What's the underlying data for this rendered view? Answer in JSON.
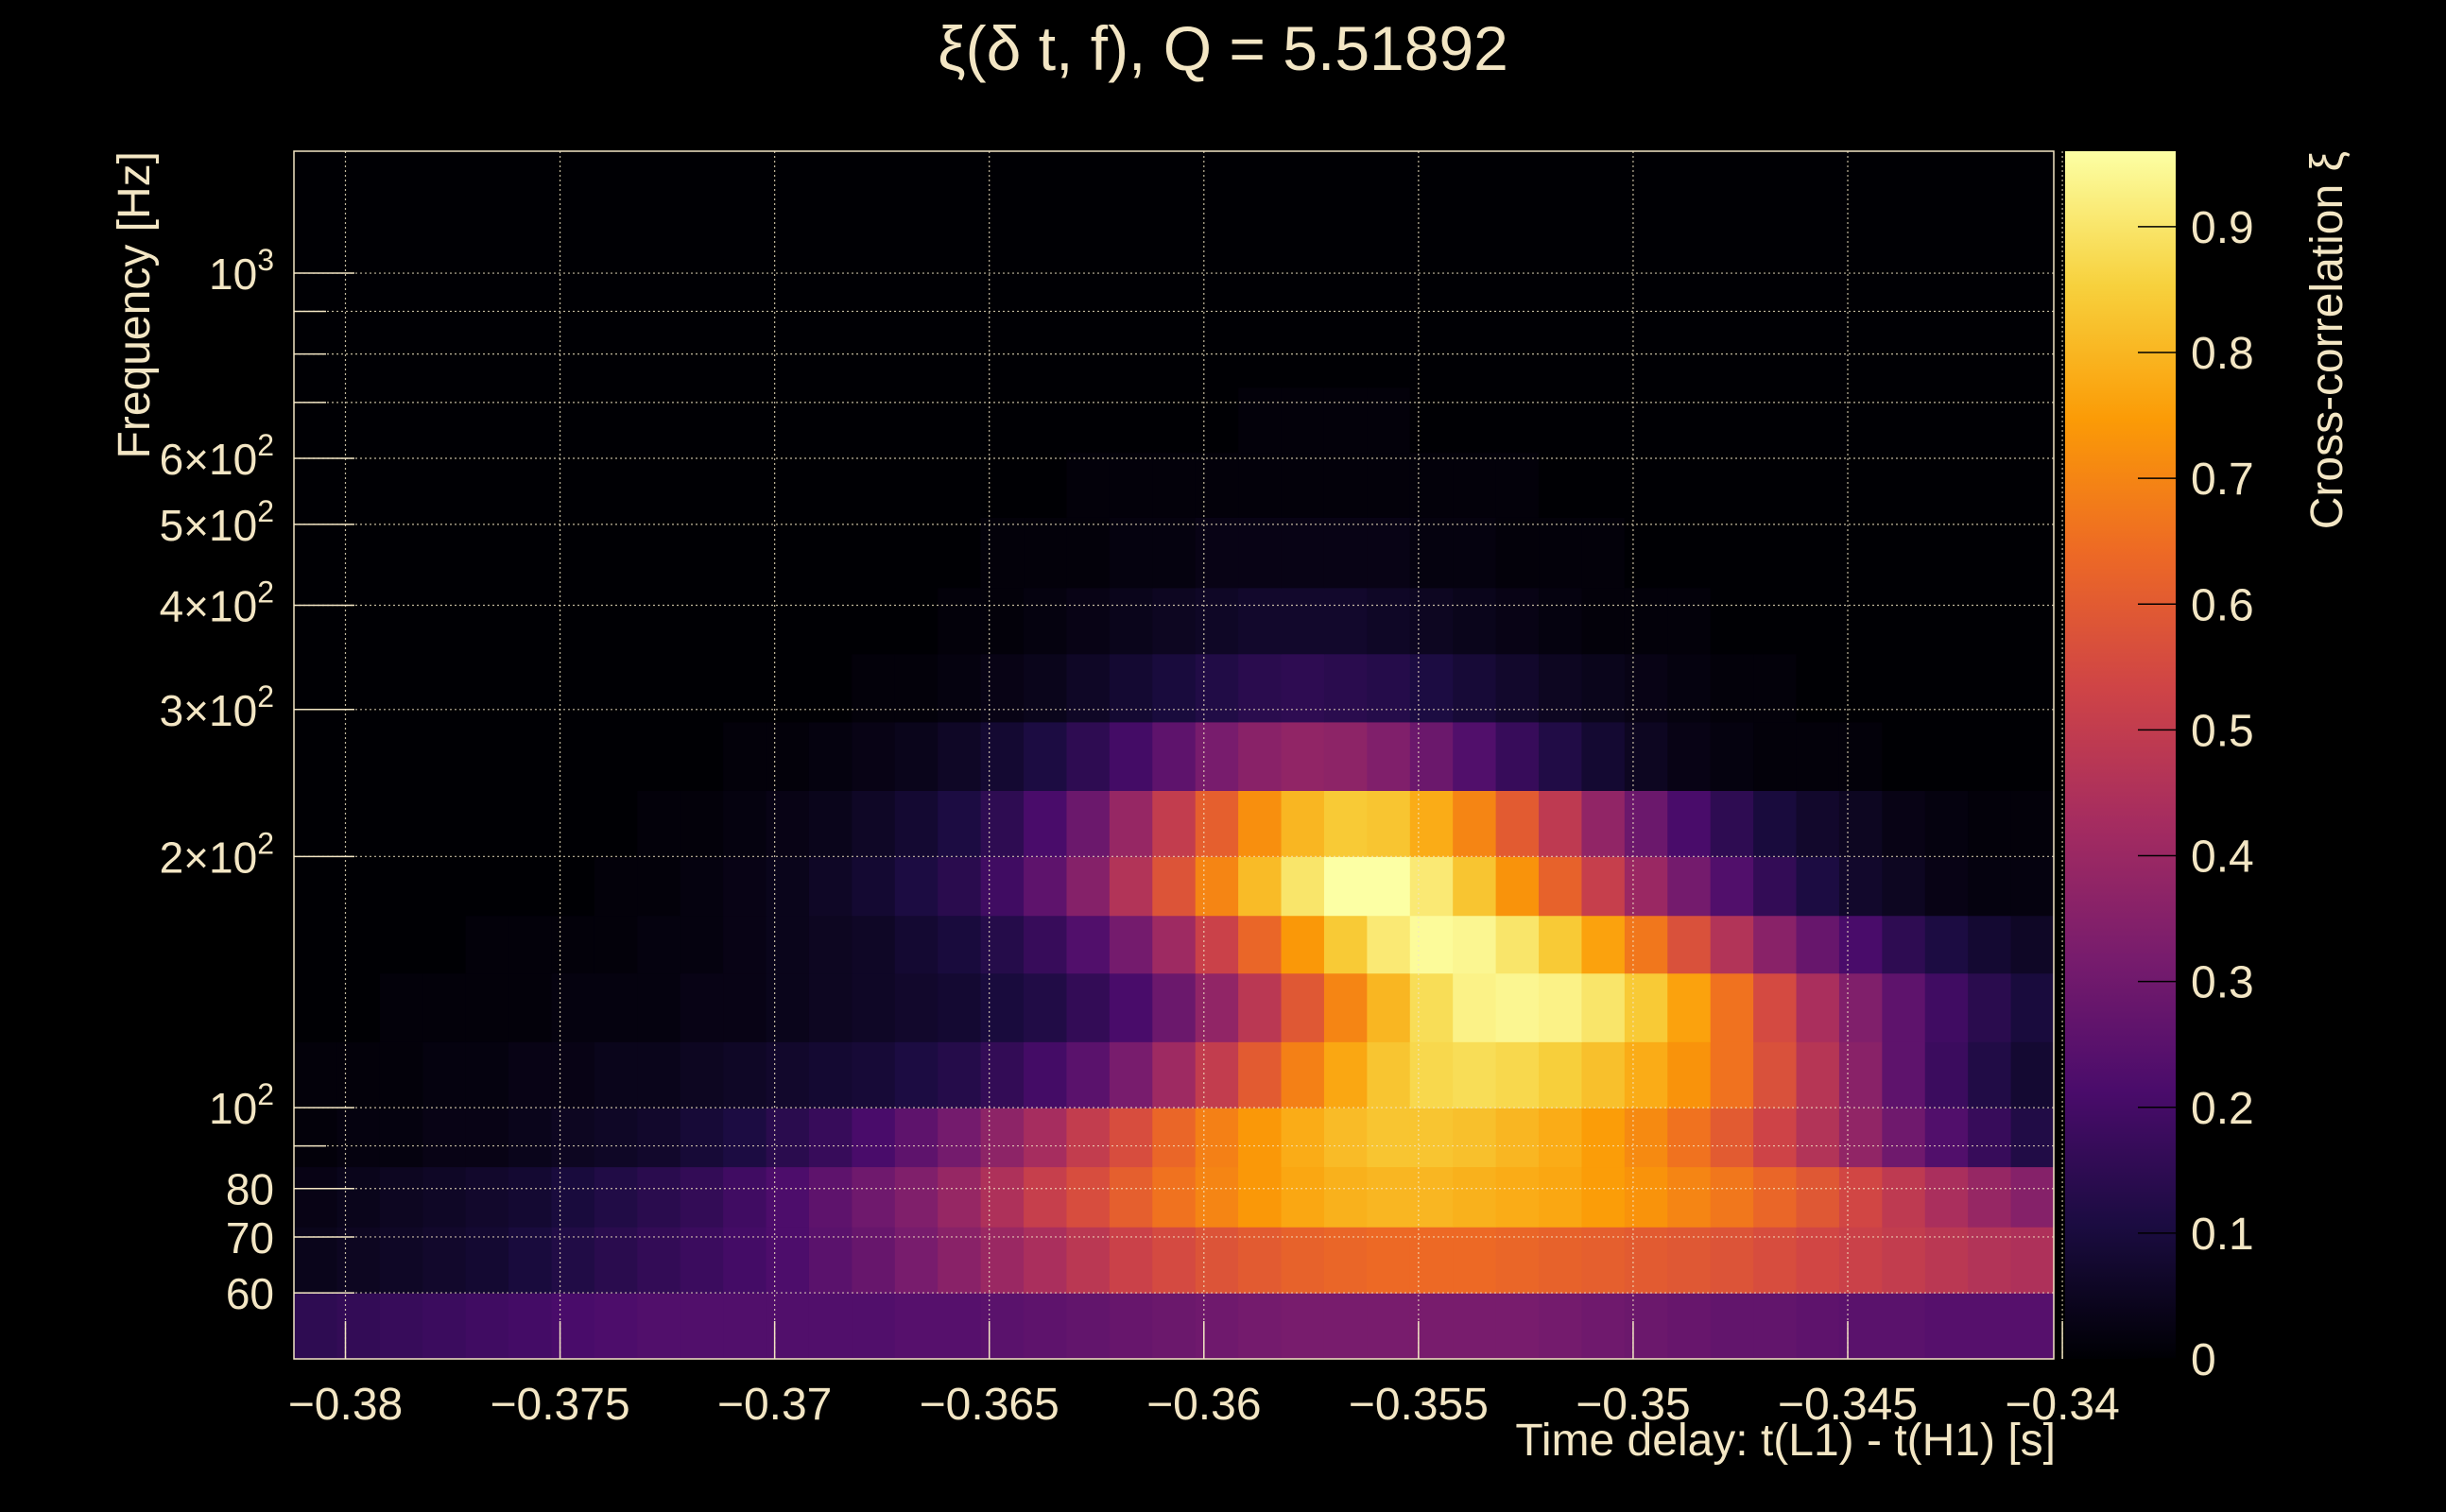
{
  "chart_data": {
    "type": "heatmap",
    "title": "ξ(δ t, f), Q = 5.51892",
    "xlabel": "Time delay: t(L1) - t(H1) [s]",
    "ylabel": "Frequency [Hz]",
    "colorbar_label": "Cross-correlation ξ",
    "x_range": [
      -0.3812,
      -0.3402
    ],
    "y_range": [
      50,
      1400
    ],
    "y_scale": "log",
    "grid": true,
    "x_ticks": [
      -0.38,
      -0.375,
      -0.37,
      -0.365,
      -0.36,
      -0.355,
      -0.35,
      -0.345,
      -0.34
    ],
    "x_tick_labels": [
      "−0.38",
      "−0.375",
      "−0.37",
      "−0.365",
      "−0.36",
      "−0.355",
      "−0.35",
      "−0.345",
      "−0.34"
    ],
    "y_ticks": [
      {
        "value": 60,
        "label": "60"
      },
      {
        "value": 70,
        "label": "70"
      },
      {
        "value": 80,
        "label": "80"
      },
      {
        "value": 100,
        "label": "10",
        "sup": "2"
      },
      {
        "value": 200,
        "label": "2×10",
        "sup": "2"
      },
      {
        "value": 300,
        "label": "3×10",
        "sup": "2"
      },
      {
        "value": 400,
        "label": "4×10",
        "sup": "2"
      },
      {
        "value": 500,
        "label": "5×10",
        "sup": "2"
      },
      {
        "value": 600,
        "label": "6×10",
        "sup": "2"
      },
      {
        "value": 1000,
        "label": "10",
        "sup": "3"
      }
    ],
    "y_minor_ticks": [
      90,
      700,
      800,
      900
    ],
    "colorbar_range": [
      0,
      0.96
    ],
    "colorbar_ticks": [
      {
        "value": 0,
        "label": "0"
      },
      {
        "value": 0.1,
        "label": "0.1"
      },
      {
        "value": 0.2,
        "label": "0.2"
      },
      {
        "value": 0.3,
        "label": "0.3"
      },
      {
        "value": 0.4,
        "label": "0.4"
      },
      {
        "value": 0.5,
        "label": "0.5"
      },
      {
        "value": 0.6,
        "label": "0.6"
      },
      {
        "value": 0.7,
        "label": "0.7"
      },
      {
        "value": 0.8,
        "label": "0.8"
      },
      {
        "value": 0.9,
        "label": "0.9"
      }
    ],
    "colormap": [
      "#000004",
      "#1b0c41",
      "#4a0c6b",
      "#781c6d",
      "#a52c60",
      "#cf4446",
      "#ed6925",
      "#fb9b06",
      "#f7d13d",
      "#fcffa4"
    ],
    "x_bin_edges": [
      -0.3812,
      -0.3802,
      -0.3792,
      -0.3782,
      -0.3772,
      -0.3762,
      -0.3752,
      -0.3742,
      -0.3732,
      -0.3722,
      -0.3712,
      -0.3702,
      -0.3692,
      -0.3682,
      -0.3672,
      -0.3662,
      -0.3652,
      -0.3642,
      -0.3632,
      -0.3622,
      -0.3612,
      -0.3602,
      -0.3592,
      -0.3582,
      -0.3572,
      -0.3562,
      -0.3552,
      -0.3542,
      -0.3532,
      -0.3522,
      -0.3512,
      -0.3502,
      -0.3492,
      -0.3482,
      -0.3472,
      -0.3462,
      -0.3452,
      -0.3442,
      -0.3432,
      -0.3422,
      -0.3412,
      -0.3402
    ],
    "y_bin_edges": [
      50,
      60,
      72,
      85,
      100,
      120,
      145,
      170,
      200,
      240,
      290,
      350,
      420,
      510,
      610,
      730,
      870,
      1040,
      1240,
      1400
    ],
    "z": [
      [
        0.15,
        0.16,
        0.17,
        0.18,
        0.19,
        0.2,
        0.21,
        0.22,
        0.23,
        0.23,
        0.23,
        0.23,
        0.23,
        0.23,
        0.24,
        0.24,
        0.25,
        0.26,
        0.27,
        0.28,
        0.29,
        0.3,
        0.31,
        0.32,
        0.32,
        0.32,
        0.32,
        0.32,
        0.32,
        0.31,
        0.3,
        0.29,
        0.28,
        0.27,
        0.27,
        0.26,
        0.25,
        0.25,
        0.24,
        0.24,
        0.24
      ],
      [
        0.04,
        0.05,
        0.06,
        0.07,
        0.08,
        0.1,
        0.12,
        0.14,
        0.16,
        0.18,
        0.2,
        0.22,
        0.25,
        0.28,
        0.32,
        0.36,
        0.4,
        0.44,
        0.48,
        0.52,
        0.55,
        0.58,
        0.6,
        0.62,
        0.63,
        0.64,
        0.64,
        0.64,
        0.63,
        0.62,
        0.61,
        0.6,
        0.59,
        0.58,
        0.56,
        0.54,
        0.52,
        0.5,
        0.48,
        0.46,
        0.45
      ],
      [
        0.03,
        0.04,
        0.05,
        0.06,
        0.07,
        0.08,
        0.1,
        0.12,
        0.14,
        0.16,
        0.19,
        0.22,
        0.26,
        0.3,
        0.34,
        0.39,
        0.45,
        0.51,
        0.56,
        0.61,
        0.66,
        0.7,
        0.74,
        0.77,
        0.79,
        0.8,
        0.8,
        0.79,
        0.78,
        0.77,
        0.75,
        0.73,
        0.7,
        0.67,
        0.63,
        0.59,
        0.54,
        0.49,
        0.44,
        0.39,
        0.35
      ],
      [
        0.01,
        0.02,
        0.02,
        0.03,
        0.03,
        0.04,
        0.05,
        0.06,
        0.07,
        0.09,
        0.11,
        0.14,
        0.17,
        0.21,
        0.26,
        0.31,
        0.37,
        0.43,
        0.5,
        0.56,
        0.63,
        0.69,
        0.74,
        0.78,
        0.81,
        0.83,
        0.83,
        0.82,
        0.8,
        0.78,
        0.75,
        0.71,
        0.66,
        0.6,
        0.53,
        0.46,
        0.38,
        0.3,
        0.23,
        0.17,
        0.12
      ],
      [
        0.01,
        0.01,
        0.01,
        0.02,
        0.02,
        0.03,
        0.03,
        0.04,
        0.04,
        0.05,
        0.06,
        0.07,
        0.08,
        0.09,
        0.11,
        0.13,
        0.16,
        0.2,
        0.25,
        0.32,
        0.41,
        0.5,
        0.6,
        0.69,
        0.77,
        0.83,
        0.87,
        0.88,
        0.87,
        0.85,
        0.82,
        0.78,
        0.73,
        0.66,
        0.57,
        0.47,
        0.36,
        0.26,
        0.18,
        0.12,
        0.08
      ],
      [
        0.0,
        0.0,
        0.01,
        0.01,
        0.01,
        0.01,
        0.02,
        0.02,
        0.02,
        0.03,
        0.03,
        0.04,
        0.05,
        0.06,
        0.07,
        0.08,
        0.1,
        0.12,
        0.16,
        0.21,
        0.29,
        0.38,
        0.48,
        0.59,
        0.7,
        0.8,
        0.88,
        0.93,
        0.94,
        0.93,
        0.9,
        0.84,
        0.76,
        0.66,
        0.55,
        0.44,
        0.34,
        0.26,
        0.19,
        0.14,
        0.1
      ],
      [
        0.0,
        0.0,
        0.0,
        0.0,
        0.01,
        0.01,
        0.01,
        0.01,
        0.02,
        0.02,
        0.03,
        0.04,
        0.05,
        0.06,
        0.08,
        0.1,
        0.13,
        0.17,
        0.23,
        0.31,
        0.41,
        0.52,
        0.63,
        0.74,
        0.84,
        0.91,
        0.95,
        0.94,
        0.9,
        0.84,
        0.76,
        0.67,
        0.57,
        0.46,
        0.36,
        0.28,
        0.21,
        0.15,
        0.11,
        0.08,
        0.06
      ],
      [
        0.0,
        0.0,
        0.0,
        0.0,
        0.0,
        0.0,
        0.0,
        0.01,
        0.01,
        0.02,
        0.03,
        0.04,
        0.06,
        0.08,
        0.11,
        0.14,
        0.19,
        0.26,
        0.35,
        0.46,
        0.58,
        0.7,
        0.81,
        0.9,
        0.96,
        0.96,
        0.91,
        0.83,
        0.73,
        0.62,
        0.51,
        0.4,
        0.31,
        0.23,
        0.16,
        0.11,
        0.07,
        0.05,
        0.03,
        0.02,
        0.02
      ],
      [
        0.0,
        0.0,
        0.0,
        0.0,
        0.0,
        0.0,
        0.0,
        0.0,
        0.01,
        0.01,
        0.02,
        0.03,
        0.04,
        0.06,
        0.08,
        0.11,
        0.15,
        0.21,
        0.29,
        0.39,
        0.5,
        0.61,
        0.72,
        0.8,
        0.84,
        0.83,
        0.78,
        0.7,
        0.6,
        0.49,
        0.38,
        0.29,
        0.21,
        0.15,
        0.1,
        0.07,
        0.05,
        0.03,
        0.02,
        0.01,
        0.01
      ],
      [
        0.0,
        0.0,
        0.0,
        0.0,
        0.0,
        0.0,
        0.0,
        0.0,
        0.0,
        0.0,
        0.01,
        0.01,
        0.02,
        0.03,
        0.04,
        0.06,
        0.08,
        0.11,
        0.15,
        0.2,
        0.26,
        0.32,
        0.36,
        0.38,
        0.37,
        0.34,
        0.29,
        0.23,
        0.17,
        0.12,
        0.08,
        0.05,
        0.03,
        0.02,
        0.01,
        0.01,
        0.01,
        0.0,
        0.0,
        0.0,
        0.0
      ],
      [
        0.0,
        0.0,
        0.0,
        0.0,
        0.0,
        0.0,
        0.0,
        0.0,
        0.0,
        0.0,
        0.0,
        0.0,
        0.0,
        0.01,
        0.01,
        0.02,
        0.03,
        0.04,
        0.06,
        0.08,
        0.1,
        0.12,
        0.14,
        0.15,
        0.14,
        0.13,
        0.11,
        0.09,
        0.07,
        0.05,
        0.04,
        0.03,
        0.02,
        0.01,
        0.01,
        0.0,
        0.0,
        0.0,
        0.0,
        0.0,
        0.0
      ],
      [
        0.0,
        0.0,
        0.0,
        0.0,
        0.0,
        0.0,
        0.0,
        0.0,
        0.0,
        0.0,
        0.0,
        0.0,
        0.0,
        0.0,
        0.0,
        0.01,
        0.01,
        0.02,
        0.03,
        0.04,
        0.05,
        0.06,
        0.07,
        0.07,
        0.07,
        0.06,
        0.05,
        0.04,
        0.03,
        0.02,
        0.01,
        0.01,
        0.01,
        0.0,
        0.0,
        0.0,
        0.0,
        0.0,
        0.0,
        0.0,
        0.0
      ],
      [
        0.0,
        0.0,
        0.0,
        0.0,
        0.0,
        0.0,
        0.0,
        0.0,
        0.0,
        0.0,
        0.0,
        0.0,
        0.0,
        0.0,
        0.0,
        0.0,
        0.01,
        0.01,
        0.01,
        0.02,
        0.02,
        0.03,
        0.03,
        0.03,
        0.03,
        0.03,
        0.02,
        0.02,
        0.01,
        0.01,
        0.01,
        0.0,
        0.0,
        0.0,
        0.0,
        0.0,
        0.0,
        0.0,
        0.0,
        0.0,
        0.0
      ],
      [
        0.0,
        0.0,
        0.0,
        0.0,
        0.0,
        0.0,
        0.0,
        0.0,
        0.0,
        0.0,
        0.0,
        0.0,
        0.0,
        0.0,
        0.0,
        0.0,
        0.0,
        0.0,
        0.01,
        0.01,
        0.01,
        0.01,
        0.01,
        0.01,
        0.01,
        0.01,
        0.01,
        0.01,
        0.01,
        0.0,
        0.0,
        0.0,
        0.0,
        0.0,
        0.0,
        0.0,
        0.0,
        0.0,
        0.0,
        0.0,
        0.0
      ],
      [
        0.0,
        0.0,
        0.0,
        0.0,
        0.0,
        0.0,
        0.0,
        0.0,
        0.0,
        0.0,
        0.0,
        0.0,
        0.0,
        0.0,
        0.0,
        0.0,
        0.0,
        0.0,
        0.0,
        0.0,
        0.0,
        0.0,
        0.01,
        0.01,
        0.01,
        0.01,
        0.0,
        0.0,
        0.0,
        0.0,
        0.0,
        0.0,
        0.0,
        0.0,
        0.0,
        0.0,
        0.0,
        0.0,
        0.0,
        0.0,
        0.0
      ],
      [
        0.0,
        0.0,
        0.0,
        0.0,
        0.0,
        0.0,
        0.0,
        0.0,
        0.0,
        0.0,
        0.0,
        0.0,
        0.0,
        0.0,
        0.0,
        0.0,
        0.0,
        0.0,
        0.0,
        0.0,
        0.0,
        0.0,
        0.0,
        0.0,
        0.0,
        0.0,
        0.0,
        0.0,
        0.0,
        0.0,
        0.0,
        0.0,
        0.0,
        0.0,
        0.0,
        0.0,
        0.0,
        0.0,
        0.0,
        0.0,
        0.0
      ],
      [
        0.0,
        0.0,
        0.0,
        0.0,
        0.0,
        0.0,
        0.0,
        0.0,
        0.0,
        0.0,
        0.0,
        0.0,
        0.0,
        0.0,
        0.0,
        0.0,
        0.0,
        0.0,
        0.0,
        0.0,
        0.0,
        0.0,
        0.0,
        0.0,
        0.0,
        0.0,
        0.0,
        0.0,
        0.0,
        0.0,
        0.0,
        0.0,
        0.0,
        0.0,
        0.0,
        0.0,
        0.0,
        0.0,
        0.0,
        0.0,
        0.0
      ],
      [
        0.0,
        0.0,
        0.0,
        0.0,
        0.0,
        0.0,
        0.0,
        0.0,
        0.0,
        0.0,
        0.0,
        0.0,
        0.0,
        0.0,
        0.0,
        0.0,
        0.0,
        0.0,
        0.0,
        0.0,
        0.0,
        0.0,
        0.0,
        0.0,
        0.0,
        0.0,
        0.0,
        0.0,
        0.0,
        0.0,
        0.0,
        0.0,
        0.0,
        0.0,
        0.0,
        0.0,
        0.0,
        0.0,
        0.0,
        0.0,
        0.0
      ],
      [
        0.0,
        0.0,
        0.0,
        0.0,
        0.0,
        0.0,
        0.0,
        0.0,
        0.0,
        0.0,
        0.0,
        0.0,
        0.0,
        0.0,
        0.0,
        0.0,
        0.0,
        0.0,
        0.0,
        0.0,
        0.0,
        0.0,
        0.0,
        0.0,
        0.0,
        0.0,
        0.0,
        0.0,
        0.0,
        0.0,
        0.0,
        0.0,
        0.0,
        0.0,
        0.0,
        0.0,
        0.0,
        0.0,
        0.0,
        0.0,
        0.0
      ]
    ]
  }
}
